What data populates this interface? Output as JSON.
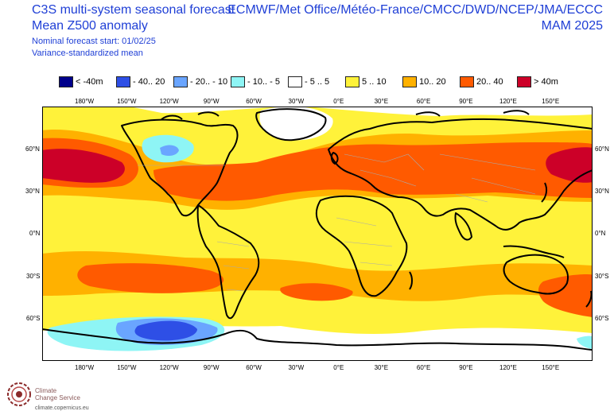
{
  "header": {
    "title_line1": "C3S multi-system seasonal forecast",
    "title_line2": "Mean Z500 anomaly",
    "subtitle_line1": "Nominal forecast start: 01/02/25",
    "subtitle_line2": "Variance-standardized mean",
    "centres": "ECMWF/Met Office/Météo-France/CMCC/DWD/NCEP/JMA/ECCC",
    "season": "MAM 2025"
  },
  "legend": [
    {
      "label": "< -40m",
      "color": "#00008b"
    },
    {
      "label": "- 40.. 20",
      "color": "#2e4fe6"
    },
    {
      "label": "- 20.. - 10",
      "color": "#6aa5ff"
    },
    {
      "label": "- 10.. - 5",
      "color": "#8ef5f5"
    },
    {
      "label": "- 5 .. 5",
      "color": "#ffffff"
    },
    {
      "label": "5 .. 10",
      "color": "#fff23a"
    },
    {
      "label": "10.. 20",
      "color": "#ffb100"
    },
    {
      "label": "20.. 40",
      "color": "#ff5a00"
    },
    {
      "label": "> 40m",
      "color": "#cc0028"
    }
  ],
  "axes": {
    "lon_labels": [
      "180°W",
      "150°W",
      "120°W",
      "90°W",
      "60°W",
      "30°W",
      "0°E",
      "30°E",
      "60°E",
      "90°E",
      "120°E",
      "150°E"
    ],
    "lat_labels": [
      "60°N",
      "30°N",
      "0°N",
      "30°S",
      "60°S"
    ]
  },
  "logo": {
    "line1": "Climate",
    "line2": "Change Service",
    "url": "climate.copernicus.eu"
  }
}
